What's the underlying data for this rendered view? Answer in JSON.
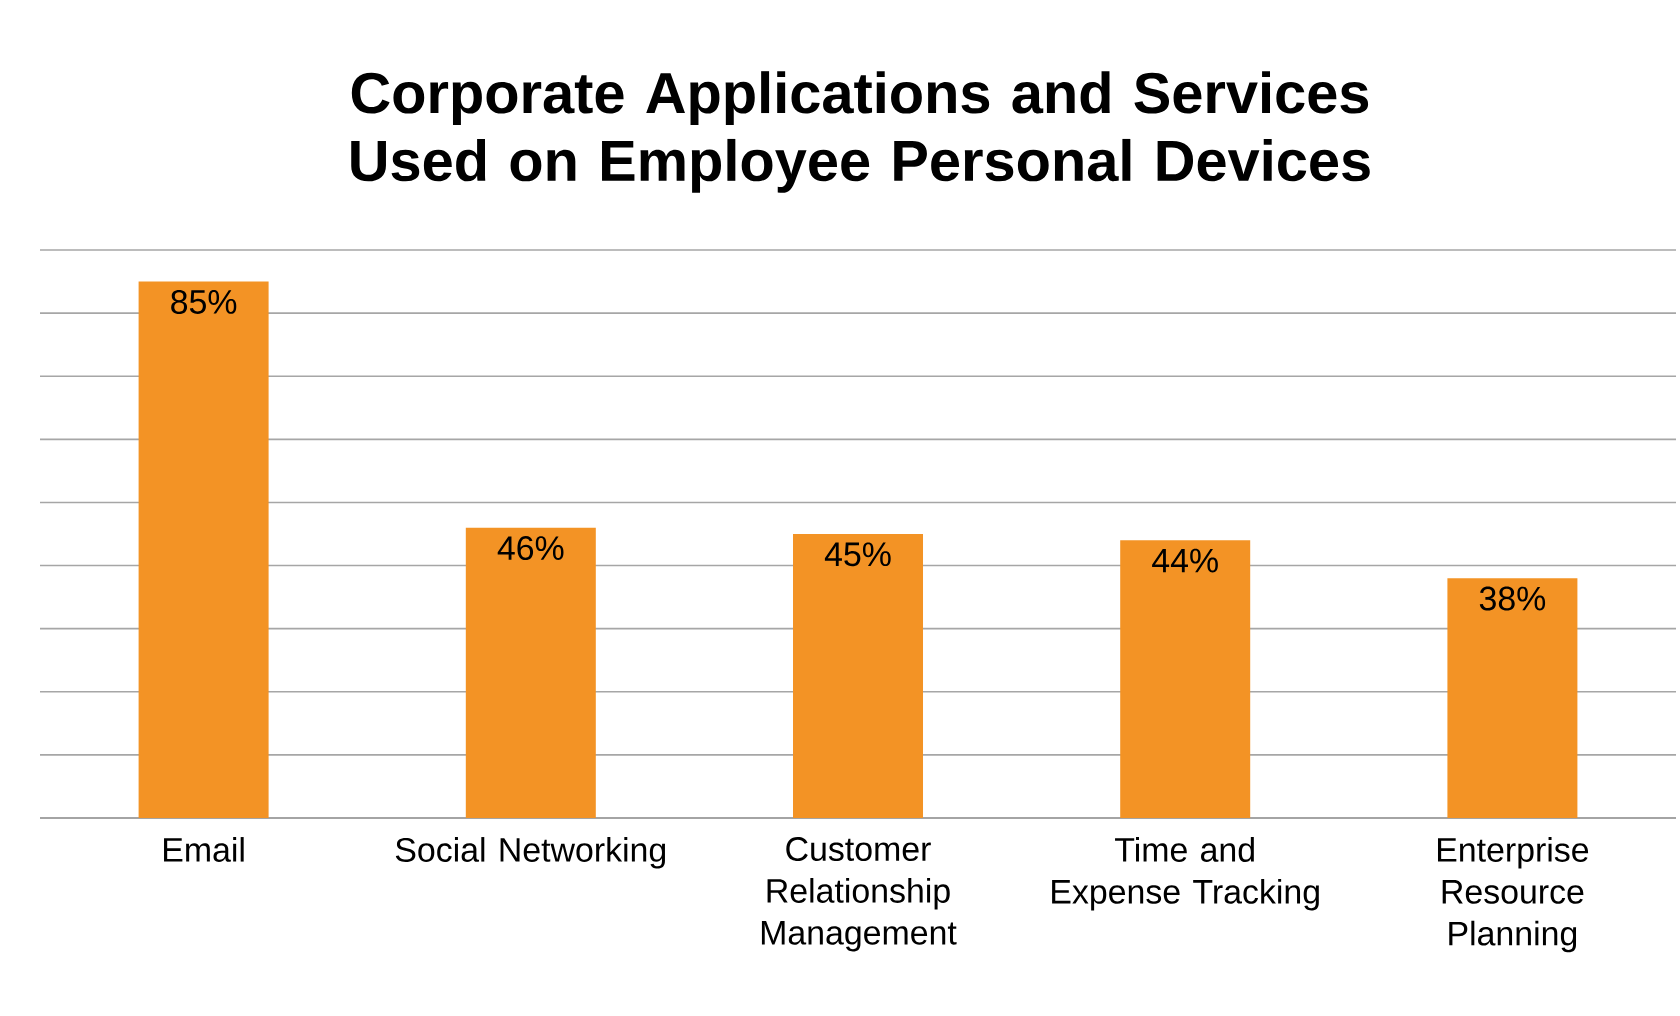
{
  "chart_data": {
    "type": "bar",
    "title": "Corporate Applications and Services Used on Employee Personal Devices",
    "categories": [
      "Email",
      "Social Networking",
      "Customer Relationship Management",
      "Time and Expense Tracking",
      "Enterprise Resource Planning"
    ],
    "values": [
      85,
      46,
      45,
      44,
      38
    ],
    "value_labels": [
      "85%",
      "46%",
      "45%",
      "44%",
      "38%"
    ],
    "color": "#f39325",
    "ylim": [
      0,
      90
    ],
    "yticks": [
      {
        "value": 0,
        "label": null
      },
      {
        "value": 10,
        "label": null
      },
      {
        "value": 20,
        "label": null
      },
      {
        "value": 30,
        "label": null
      },
      {
        "value": 40,
        "label": null
      },
      {
        "value": 50,
        "label": null
      },
      {
        "value": 60,
        "label": null
      },
      {
        "value": 70,
        "label": null
      },
      {
        "value": 80,
        "label": null
      },
      {
        "value": 90,
        "label": null
      }
    ],
    "grid": "y",
    "tick_labels": "x"
  }
}
